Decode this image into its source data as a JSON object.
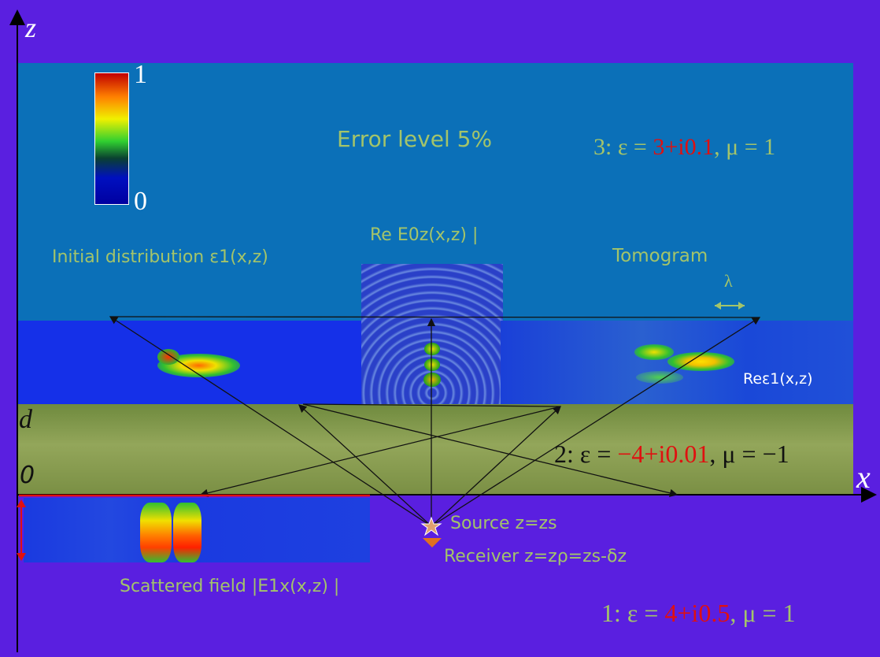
{
  "axes": {
    "z_label": "z",
    "x_label": "x",
    "d_label": "d",
    "zero_label": "0"
  },
  "colorbar": {
    "max_label": "1",
    "min_label": "0"
  },
  "title": "Error level 5%",
  "region3": {
    "prefix": "3: ε = ",
    "eps": "3+i0.1",
    "suffix": ", μ = 1"
  },
  "region2": {
    "prefix": "2: ε = ",
    "eps": "−4+i0.01",
    "suffix": ", μ = −1"
  },
  "region1": {
    "prefix": "1: ε = ",
    "eps": "4+i0.5",
    "suffix": ", μ = 1"
  },
  "labels": {
    "initial": "Initial distribution ε1(x,z)",
    "field": "Re E0z(x,z) |",
    "tomogram": "Tomogram",
    "lambda": "λ",
    "re_eps": "Reε1(x,z)",
    "source": "Source z=zs",
    "receiver": "Receiver z=zρ=zs-δz",
    "scattered": "Scattered field |E1x(x,z) |"
  },
  "colors": {
    "background": "#5a1fe0",
    "region3": "#0b70b8",
    "slab": "#8aa050",
    "label": "#a3c46a",
    "accent": "#e01010"
  }
}
